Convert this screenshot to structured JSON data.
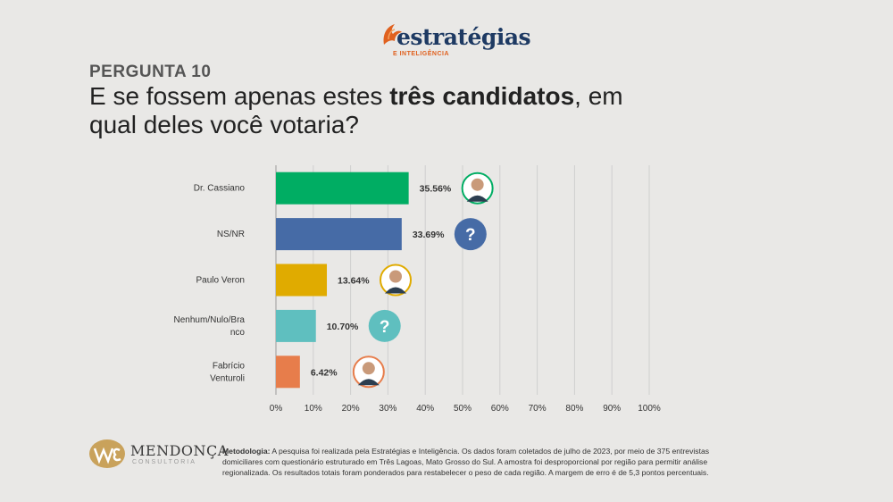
{
  "brand": {
    "name": "estratégias",
    "tagline": "E INTELIGÊNCIA"
  },
  "question": {
    "label": "PERGUNTA 10",
    "text_before": "E se fossem apenas estes ",
    "text_bold": "três candidatos",
    "text_after": ", em qual deles você votaria?"
  },
  "chart_data": {
    "type": "bar",
    "orientation": "horizontal",
    "categories": [
      "Dr. Cassiano",
      "NS/NR",
      "Paulo Veron",
      "Nenhum/Nulo/Bra nco",
      "Fabrício Venturoli"
    ],
    "values": [
      35.56,
      33.69,
      13.64,
      10.7,
      6.42
    ],
    "value_labels": [
      "35.56%",
      "33.69%",
      "13.64%",
      "10.70%",
      "6.42%"
    ],
    "colors": [
      "#00ad63",
      "#466ba6",
      "#e0ab00",
      "#5fbfbf",
      "#e77d4b"
    ],
    "markers": [
      "candidate-photo",
      "question-mark",
      "candidate-photo",
      "question-mark",
      "candidate-photo"
    ],
    "xlim": [
      0,
      100
    ],
    "xticks": [
      "0%",
      "10%",
      "20%",
      "30%",
      "40%",
      "50%",
      "60%",
      "70%",
      "80%",
      "90%",
      "100%"
    ],
    "grid": true
  },
  "footer": {
    "company": "MENDONÇA",
    "company_sub": "CONSULTORIA",
    "method_label": "Metodologia:",
    "method_text": " A pesquisa foi realizada pela Estratégias e Inteligência. Os dados foram coletados de julho de 2023, por meio de 375 entrevistas domiciliares com questionário estruturado em Três Lagoas, Mato Grosso do Sul. A amostra foi desproporcional por região para permitir análise regionalizada. Os resultados totais foram ponderados para restabelecer o peso de cada região. A margem de erro é de 5,3 pontos percentuais."
  }
}
